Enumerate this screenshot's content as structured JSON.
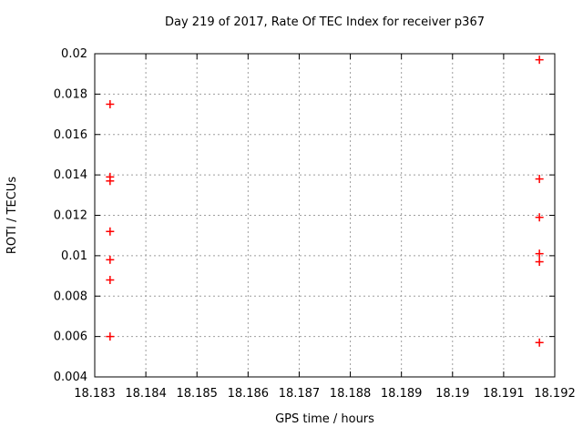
{
  "chart": {
    "title": "Day 219 of 2017, Rate Of TEC Index for receiver p367",
    "xlabel": "GPS time / hours",
    "ylabel": "ROTI / TECUs"
  },
  "colors": {
    "background": "#ffffff",
    "axis": "#000000",
    "grid": "#9e9e9e",
    "marker": "#ff0000",
    "text": "#000000"
  },
  "chart_data": {
    "type": "scatter",
    "title": "Day 219 of 2017, Rate Of TEC Index for receiver p367",
    "xlabel": "GPS time / hours",
    "ylabel": "ROTI / TECUs",
    "xlim": [
      18.183,
      18.192
    ],
    "ylim": [
      0.004,
      0.02
    ],
    "x_ticks": [
      18.183,
      18.184,
      18.185,
      18.186,
      18.187,
      18.188,
      18.189,
      18.19,
      18.191,
      18.192
    ],
    "x_tick_labels": [
      "18.183",
      "18.184",
      "18.185",
      "18.186",
      "18.187",
      "18.188",
      "18.189",
      "18.19",
      "18.191",
      "18.192"
    ],
    "y_ticks": [
      0.004,
      0.006,
      0.008,
      0.01,
      0.012,
      0.014,
      0.016,
      0.018,
      0.02
    ],
    "y_tick_labels": [
      "0.004",
      "0.006",
      "0.008",
      "0.01",
      "0.012",
      "0.014",
      "0.016",
      "0.018",
      "0.02"
    ],
    "grid": true,
    "grid_style": "dotted",
    "legend": "none",
    "marker": {
      "shape": "plus",
      "color": "#ff0000",
      "size": 9
    },
    "series": [
      {
        "name": "ROTI",
        "points": [
          [
            18.1833,
            0.0175
          ],
          [
            18.1833,
            0.0139
          ],
          [
            18.1833,
            0.0137
          ],
          [
            18.1833,
            0.0112
          ],
          [
            18.1833,
            0.0098
          ],
          [
            18.1833,
            0.0088
          ],
          [
            18.1833,
            0.006
          ],
          [
            18.1917,
            0.0197
          ],
          [
            18.1917,
            0.0138
          ],
          [
            18.1917,
            0.0119
          ],
          [
            18.1917,
            0.0101
          ],
          [
            18.1917,
            0.0097
          ],
          [
            18.1917,
            0.0057
          ]
        ]
      }
    ]
  }
}
